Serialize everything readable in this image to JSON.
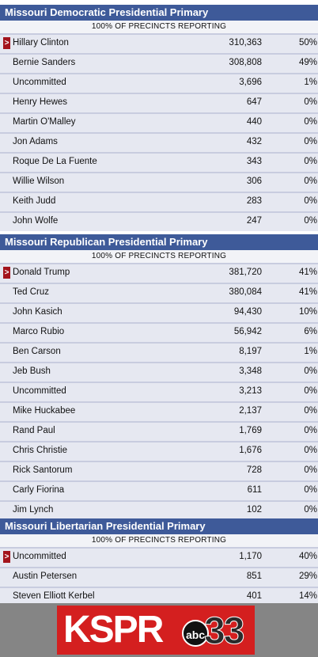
{
  "races": [
    {
      "title": "Missouri Democratic Presidential Primary",
      "reporting": "100% OF PRECINCTS REPORTING",
      "candidates": [
        {
          "name": "Hillary Clinton",
          "votes": "310,363",
          "pct": "50%",
          "leader": true
        },
        {
          "name": "Bernie Sanders",
          "votes": "308,808",
          "pct": "49%"
        },
        {
          "name": "Uncommitted",
          "votes": "3,696",
          "pct": "1%"
        },
        {
          "name": "Henry Hewes",
          "votes": "647",
          "pct": "0%"
        },
        {
          "name": "Martin O'Malley",
          "votes": "440",
          "pct": "0%"
        },
        {
          "name": "Jon Adams",
          "votes": "432",
          "pct": "0%"
        },
        {
          "name": "Roque De La Fuente",
          "votes": "343",
          "pct": "0%"
        },
        {
          "name": "Willie Wilson",
          "votes": "306",
          "pct": "0%"
        },
        {
          "name": "Keith Judd",
          "votes": "283",
          "pct": "0%"
        },
        {
          "name": "John Wolfe",
          "votes": "247",
          "pct": "0%"
        }
      ]
    },
    {
      "title": "Missouri Republican Presidential Primary",
      "reporting": "100% OF PRECINCTS REPORTING",
      "candidates": [
        {
          "name": "Donald Trump",
          "votes": "381,720",
          "pct": "41%",
          "leader": true
        },
        {
          "name": "Ted Cruz",
          "votes": "380,084",
          "pct": "41%"
        },
        {
          "name": "John Kasich",
          "votes": "94,430",
          "pct": "10%"
        },
        {
          "name": "Marco Rubio",
          "votes": "56,942",
          "pct": "6%"
        },
        {
          "name": "Ben Carson",
          "votes": "8,197",
          "pct": "1%"
        },
        {
          "name": "Jeb Bush",
          "votes": "3,348",
          "pct": "0%"
        },
        {
          "name": "Uncommitted",
          "votes": "3,213",
          "pct": "0%"
        },
        {
          "name": "Mike Huckabee",
          "votes": "2,137",
          "pct": "0%"
        },
        {
          "name": "Rand Paul",
          "votes": "1,769",
          "pct": "0%"
        },
        {
          "name": "Chris Christie",
          "votes": "1,676",
          "pct": "0%"
        },
        {
          "name": "Rick Santorum",
          "votes": "728",
          "pct": "0%"
        },
        {
          "name": "Carly Fiorina",
          "votes": "611",
          "pct": "0%"
        },
        {
          "name": "Jim Lynch",
          "votes": "102",
          "pct": "0%"
        }
      ]
    },
    {
      "title": "Missouri Libertarian Presidential Primary",
      "reporting": "100% OF PRECINCTS REPORTING",
      "candidates": [
        {
          "name": "Uncommitted",
          "votes": "1,170",
          "pct": "40%",
          "leader": true
        },
        {
          "name": "Austin Petersen",
          "votes": "851",
          "pct": "29%"
        },
        {
          "name": "Steven Elliott Kerbel",
          "votes": "401",
          "pct": "14%"
        }
      ]
    }
  ],
  "leader_marker": ">",
  "logo": {
    "wordmark": "KSPR",
    "network": "abc",
    "channel": "33"
  },
  "colors": {
    "header": "#3e5a99",
    "row": "#e6e8f1",
    "leader_marker": "#a3141c",
    "logo_red": "#d41f1f"
  }
}
